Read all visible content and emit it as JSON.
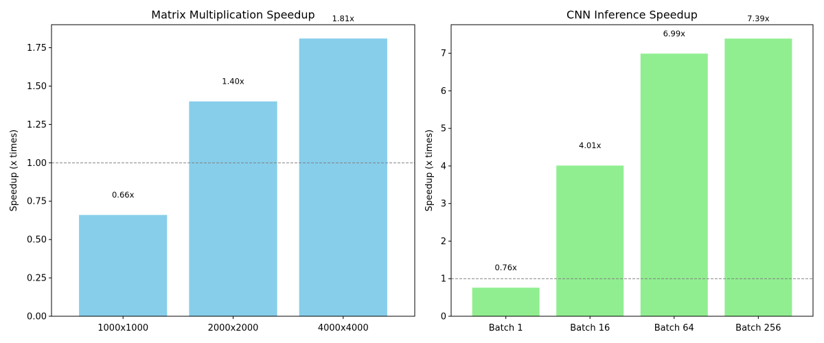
{
  "chart_data": [
    {
      "type": "bar",
      "title": "Matrix Multiplication Speedup",
      "xlabel": "",
      "ylabel": "Speedup (x times)",
      "categories": [
        "1000x1000",
        "2000x2000",
        "4000x4000"
      ],
      "values": [
        0.66,
        1.4,
        1.81
      ],
      "data_labels": [
        "0.66x",
        "1.40x",
        "1.81x"
      ],
      "ylim": [
        0,
        1.9
      ],
      "yticks": [
        0.0,
        0.25,
        0.5,
        0.75,
        1.0,
        1.25,
        1.5,
        1.75
      ],
      "ytick_labels": [
        "0.00",
        "0.25",
        "0.50",
        "0.75",
        "1.00",
        "1.25",
        "1.50",
        "1.75"
      ],
      "reference_line": 1.0,
      "bar_color": "#87CEEB",
      "grid": false,
      "legend": "none"
    },
    {
      "type": "bar",
      "title": "CNN Inference Speedup",
      "xlabel": "",
      "ylabel": "Speedup (x times)",
      "categories": [
        "Batch 1",
        "Batch 16",
        "Batch 64",
        "Batch 256"
      ],
      "values": [
        0.76,
        4.01,
        6.99,
        7.39
      ],
      "data_labels": [
        "0.76x",
        "4.01x",
        "6.99x",
        "7.39x"
      ],
      "ylim": [
        0,
        7.76
      ],
      "yticks": [
        0,
        1,
        2,
        3,
        4,
        5,
        6,
        7
      ],
      "ytick_labels": [
        "0",
        "1",
        "2",
        "3",
        "4",
        "5",
        "6",
        "7"
      ],
      "reference_line": 1.0,
      "bar_color": "#90EE90",
      "grid": false,
      "legend": "none"
    }
  ]
}
